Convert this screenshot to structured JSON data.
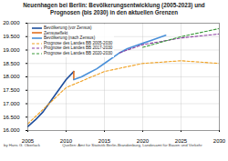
{
  "chart_data": {
    "type": "line",
    "title": "Neuenhagen bei Berlin: Bevölkerungsentwicklung (2005-2023) und Prognosen (bis 2030) in den aktuellen Grenzen",
    "author": "by Hans G. Oberlack",
    "source": "Quellen: Amt für Statistik Berlin-Brandenburg, Landesamt für Bauen und Verkehr",
    "series": [
      {
        "name": "Bevölkerung (vor Zensus)",
        "color": "#1f4e9c",
        "line_style": "solid",
        "x": [
          2005,
          2006,
          2007,
          2008,
          2009,
          2010,
          2011
        ],
        "values": [
          16150,
          16400,
          16700,
          17100,
          17500,
          17900,
          18200
        ]
      },
      {
        "name": "Zensuseffekt",
        "color": "#e07020",
        "line_style": "solid",
        "x": [
          2011,
          2011
        ],
        "values": [
          18200,
          17900
        ]
      },
      {
        "name": "Bevölkerung (nach Zensus)",
        "color": "#4a90d9",
        "line_style": "solid",
        "x": [
          2011,
          2012,
          2013,
          2014,
          2015,
          2016,
          2017,
          2018,
          2019,
          2020,
          2021,
          2022,
          2023
        ],
        "values": [
          17900,
          18000,
          18150,
          18300,
          18500,
          18700,
          18900,
          19050,
          19150,
          19250,
          19350,
          19450,
          19550
        ]
      },
      {
        "name": "Prognose des Landes BB 2005-2030",
        "color": "#f0a020",
        "line_style": "dashed",
        "x": [
          2005,
          2010,
          2015,
          2020,
          2025,
          2030
        ],
        "values": [
          16250,
          17600,
          18200,
          18500,
          18600,
          18500
        ]
      },
      {
        "name": "Prognose des Landes BB 2017-2030",
        "color": "#8a3fa0",
        "line_style": "dashed",
        "x": [
          2017,
          2020,
          2025,
          2030
        ],
        "values": [
          18900,
          19200,
          19450,
          19600
        ]
      },
      {
        "name": "Prognose des Landes BB 2020-2030",
        "color": "#3a9a3a",
        "line_style": "dashed",
        "x": [
          2020,
          2025,
          2030
        ],
        "values": [
          19100,
          19500,
          19800
        ]
      }
    ],
    "xlim": [
      2005,
      2030
    ],
    "xticks": [
      2005,
      2010,
      2015,
      2020,
      2025,
      2030
    ],
    "ylim": [
      16000,
      20000
    ],
    "yticks": [
      {
        "value": 16000,
        "label": "16.000"
      },
      {
        "value": 16500,
        "label": "16.500"
      },
      {
        "value": 17000,
        "label": "17.000"
      },
      {
        "value": 17500,
        "label": "17.500"
      },
      {
        "value": 18000,
        "label": "18.000"
      },
      {
        "value": 18500,
        "label": "18.500"
      },
      {
        "value": 19000,
        "label": "19.000"
      },
      {
        "value": 19500,
        "label": "19.500"
      },
      {
        "value": 20000,
        "label": "20.000"
      }
    ],
    "grid": true,
    "legend": "upper left"
  }
}
